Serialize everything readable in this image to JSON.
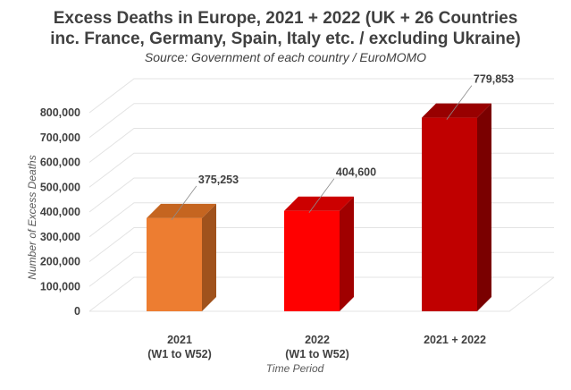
{
  "chart_data": {
    "type": "bar",
    "title_line1": "Excess Deaths in Europe, 2021 + 2022 (UK + 26 Countries",
    "title_line2": "inc. France, Germany, Spain, Italy etc. / excluding Ukraine)",
    "subtitle": "Source: Government of each country / EuroMOMO",
    "ylabel": "Number of Excess Deaths",
    "xlabel": "Time Period",
    "ylim": [
      0,
      800000
    ],
    "yticks": [
      {
        "value": 0,
        "label": "0"
      },
      {
        "value": 100000,
        "label": "100,000"
      },
      {
        "value": 200000,
        "label": "200,000"
      },
      {
        "value": 300000,
        "label": "300,000"
      },
      {
        "value": 400000,
        "label": "400,000"
      },
      {
        "value": 500000,
        "label": "500,000"
      },
      {
        "value": 600000,
        "label": "600,000"
      },
      {
        "value": 700000,
        "label": "700,000"
      },
      {
        "value": 800000,
        "label": "800,000"
      }
    ],
    "categories": [
      {
        "lines": [
          "2021",
          "(W1 to W52)"
        ]
      },
      {
        "lines": [
          "2022",
          "(W1 to W52)"
        ]
      },
      {
        "lines": [
          "2021 + 2022"
        ]
      }
    ],
    "values": [
      375253,
      404600,
      779853
    ],
    "data_labels": [
      "375,253",
      "404,600",
      "779,853"
    ],
    "colors": [
      {
        "front": "#ed7d31",
        "side": "#a0521c",
        "top": "#c56520"
      },
      {
        "front": "#ff0000",
        "side": "#a00000",
        "top": "#cc0000"
      },
      {
        "front": "#c00000",
        "side": "#7a0000",
        "top": "#980000"
      }
    ],
    "grid": true,
    "legend": "none"
  }
}
